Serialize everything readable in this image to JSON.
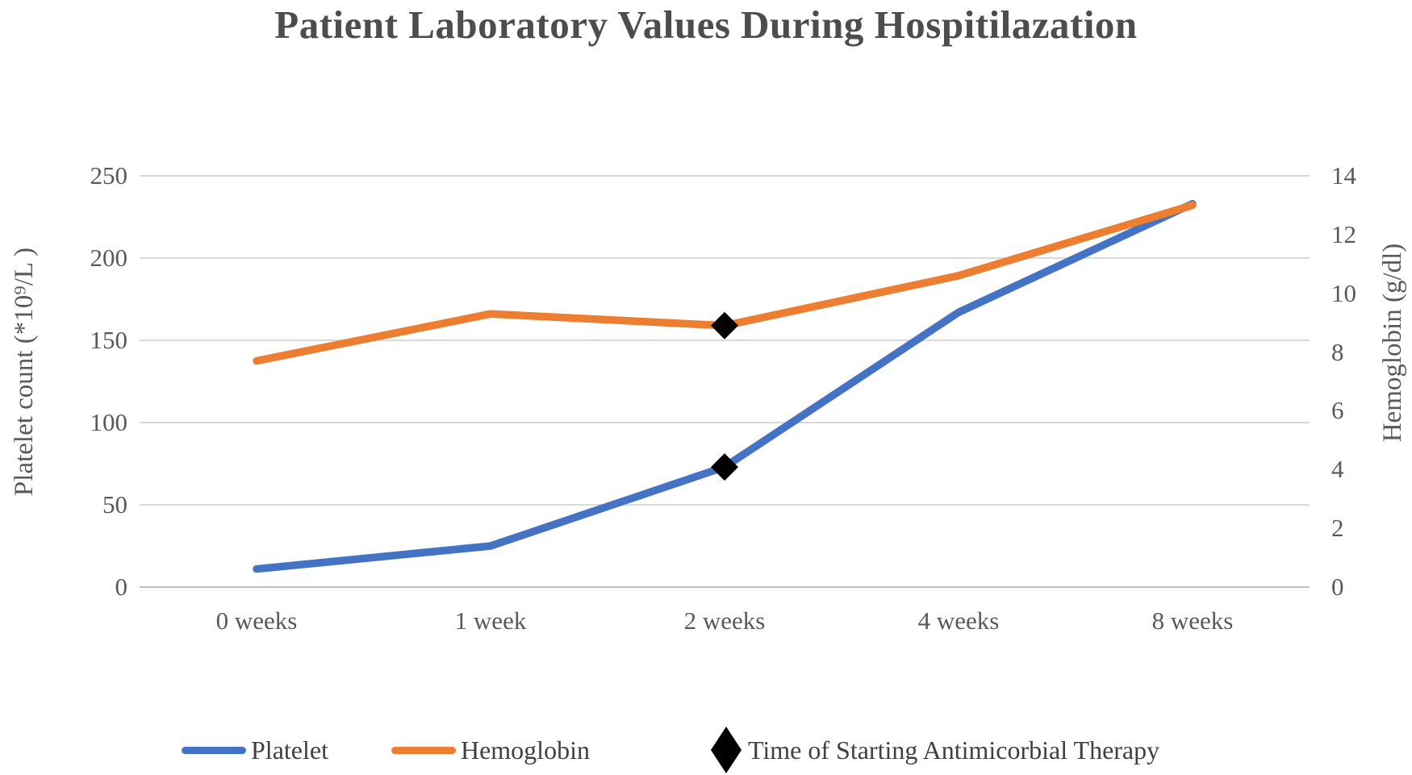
{
  "chart_data": {
    "type": "line",
    "title": "Patient Laboratory Values During Hospitilazation",
    "categories": [
      "0 weeks",
      "1 week",
      "2 weeks",
      "4 weeks",
      "8 weeks"
    ],
    "series": [
      {
        "name": "Platelet",
        "axis": "left",
        "color": "#4472C4",
        "values": [
          11,
          25,
          73,
          167,
          233
        ]
      },
      {
        "name": "Hemoglobin",
        "axis": "right",
        "color": "#ED7D31",
        "values": [
          7.7,
          9.3,
          8.9,
          10.6,
          13.0
        ]
      }
    ],
    "left_axis": {
      "label": "Platelet count (*10⁹/L )",
      "min": 0,
      "max": 250,
      "ticks": [
        0,
        50,
        100,
        150,
        200,
        250
      ]
    },
    "right_axis": {
      "label": "Hemoglobin (g/dl)",
      "min": 0,
      "max": 14,
      "ticks": [
        0,
        2,
        4,
        6,
        8,
        10,
        12,
        14
      ]
    },
    "annotation": {
      "marker": "diamond",
      "color": "#000000",
      "category": "2 weeks",
      "label": "Time of Starting Antimicorbial Therapy"
    },
    "grid": true,
    "gridline_color": "#D9D9D9",
    "baseline_color": "#C0C0C0",
    "legend_position": "bottom"
  }
}
